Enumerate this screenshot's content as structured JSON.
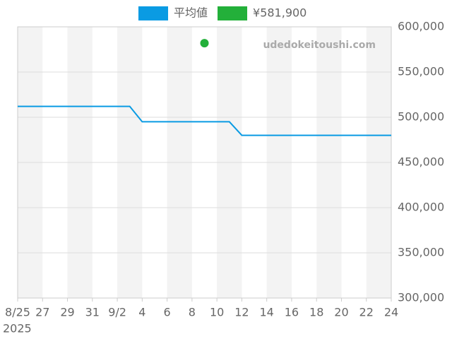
{
  "chart_data": {
    "type": "line",
    "watermark": "udedokeitoushi.com",
    "x_year_label": "2025",
    "xlim": [
      "2025-08-25",
      "2025-09-24"
    ],
    "xticks": [
      {
        "value": "2025-08-25",
        "label": "8/25"
      },
      {
        "value": "2025-08-27",
        "label": "27"
      },
      {
        "value": "2025-08-29",
        "label": "29"
      },
      {
        "value": "2025-08-31",
        "label": "31"
      },
      {
        "value": "2025-09-02",
        "label": "9/2"
      },
      {
        "value": "2025-09-04",
        "label": "4"
      },
      {
        "value": "2025-09-06",
        "label": "6"
      },
      {
        "value": "2025-09-08",
        "label": "8"
      },
      {
        "value": "2025-09-10",
        "label": "10"
      },
      {
        "value": "2025-09-12",
        "label": "12"
      },
      {
        "value": "2025-09-14",
        "label": "14"
      },
      {
        "value": "2025-09-16",
        "label": "16"
      },
      {
        "value": "2025-09-18",
        "label": "18"
      },
      {
        "value": "2025-09-20",
        "label": "20"
      },
      {
        "value": "2025-09-22",
        "label": "22"
      },
      {
        "value": "2025-09-24",
        "label": "24"
      }
    ],
    "ylim": [
      300000,
      600000
    ],
    "yticks": [
      {
        "value": 300000,
        "label": "300,000"
      },
      {
        "value": 350000,
        "label": "350,000"
      },
      {
        "value": 400000,
        "label": "400,000"
      },
      {
        "value": 450000,
        "label": "450,000"
      },
      {
        "value": 500000,
        "label": "500,000"
      },
      {
        "value": 550000,
        "label": "550,000"
      },
      {
        "value": 600000,
        "label": "600,000"
      }
    ],
    "grid": true,
    "series": [
      {
        "name": "平均値",
        "color": "#0a9be3",
        "type": "line",
        "x": [
          "2025-08-25",
          "2025-09-03",
          "2025-09-04",
          "2025-09-11",
          "2025-09-12",
          "2025-09-24"
        ],
        "values": [
          512000,
          512000,
          495000,
          495000,
          480000,
          480000
        ]
      },
      {
        "name": "¥581,900",
        "color": "#23b03a",
        "type": "scatter",
        "x": [
          "2025-09-09"
        ],
        "values": [
          581900
        ]
      }
    ]
  }
}
